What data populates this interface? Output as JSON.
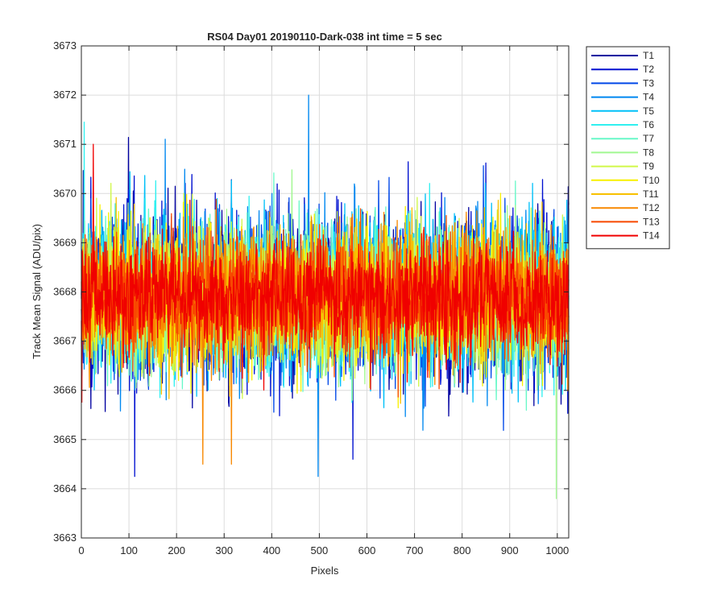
{
  "chart_data": {
    "type": "line",
    "title": "RS04 Day01 20190110-Dark-038 int time = 5 sec",
    "xlabel": "Pixels",
    "ylabel": "Track Mean Signal (ADU/pix)",
    "xlim": [
      0,
      1024
    ],
    "ylim": [
      3663,
      3673
    ],
    "x_ticks": [
      0,
      100,
      200,
      300,
      400,
      500,
      600,
      700,
      800,
      900,
      1000
    ],
    "y_ticks": [
      3663,
      3664,
      3665,
      3666,
      3667,
      3668,
      3669,
      3670,
      3671,
      3672,
      3673
    ],
    "grid": true,
    "legend_position": "outside-right-top",
    "n_points_per_series": 1024,
    "series_mean": 3667.9,
    "series": [
      {
        "name": "T1",
        "color": "#0000a0"
      },
      {
        "name": "T2",
        "color": "#0010d0"
      },
      {
        "name": "T3",
        "color": "#0048e8"
      },
      {
        "name": "T4",
        "color": "#0088f0"
      },
      {
        "name": "T5",
        "color": "#00c0f8"
      },
      {
        "name": "T6",
        "color": "#30f0f0"
      },
      {
        "name": "T7",
        "color": "#68f8c8"
      },
      {
        "name": "T8",
        "color": "#a0f890"
      },
      {
        "name": "T9",
        "color": "#d0f848"
      },
      {
        "name": "T10",
        "color": "#f8f000"
      },
      {
        "name": "T11",
        "color": "#f8c000"
      },
      {
        "name": "T12",
        "color": "#f88800"
      },
      {
        "name": "T13",
        "color": "#f84800"
      },
      {
        "name": "T14",
        "color": "#f00000"
      }
    ],
    "notable_points": [
      {
        "series": "T4",
        "x": 477,
        "y": 3672.0
      },
      {
        "series": "T4",
        "x": 497,
        "y": 3664.25
      },
      {
        "series": "T8",
        "x": 997,
        "y": 3663.8
      },
      {
        "series": "T2",
        "x": 112,
        "y": 3664.25
      },
      {
        "series": "T12",
        "x": 255,
        "y": 3664.5
      },
      {
        "series": "T12",
        "x": 315,
        "y": 3664.5
      },
      {
        "series": "T14",
        "x": 25,
        "y": 3671.0
      },
      {
        "series": "T2",
        "x": 570,
        "y": 3664.6
      },
      {
        "series": "T6",
        "x": 6,
        "y": 3671.45
      }
    ]
  }
}
